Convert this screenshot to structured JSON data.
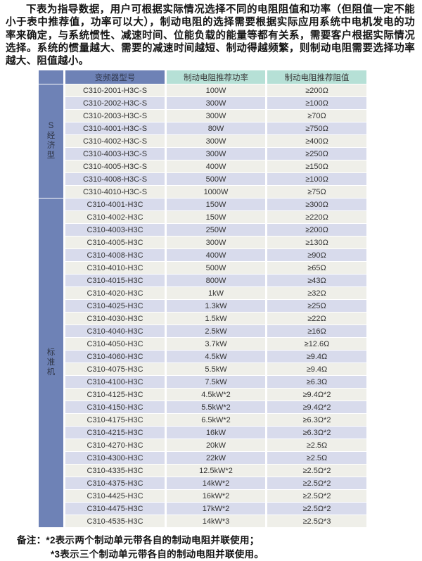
{
  "intro": {
    "text": "下表为指导数据，用户可根据实际情况选择不同的电阻阻值和功率（但阻值一定不能小于表中推荐值，功率可以大），制动电阻的选择需要根据实际应用系统中电机发电的功率来确定，与系统惯性、减速时间、位能负载的能量等都有关系，需要客户根据实际情况选择。系统的惯量越大、需要的减速时间越短、制动得越频繁，则制动电阻需要选择功率越大、阻值越小。"
  },
  "table": {
    "headers": {
      "model": "变频器型号",
      "power": "制动电阻推荐功率",
      "resistance": "制动电阻推荐阻值"
    },
    "groups": [
      {
        "label": "S经济型",
        "rows": [
          {
            "model": "C310-2001-H3C-S",
            "power": "100W",
            "resistance": "≥200Ω"
          },
          {
            "model": "C310-2002-H3C-S",
            "power": "300W",
            "resistance": "≥100Ω"
          },
          {
            "model": "C310-2003-H3C-S",
            "power": "300W",
            "resistance": "≥70Ω"
          },
          {
            "model": "C310-4001-H3C-S",
            "power": "80W",
            "resistance": "≥750Ω"
          },
          {
            "model": "C310-4002-H3C-S",
            "power": "300W",
            "resistance": "≥400Ω"
          },
          {
            "model": "C310-4003-H3C-S",
            "power": "300W",
            "resistance": "≥250Ω"
          },
          {
            "model": "C310-4005-H3C-S",
            "power": "400W",
            "resistance": "≥150Ω"
          },
          {
            "model": "C310-4008-H3C-S",
            "power": "500W",
            "resistance": "≥100Ω"
          },
          {
            "model": "C310-4010-H3C-S",
            "power": "1000W",
            "resistance": "≥75Ω"
          }
        ]
      },
      {
        "label": "标准机",
        "rows": [
          {
            "model": "C310-4001-H3C",
            "power": "150W",
            "resistance": "≥300Ω"
          },
          {
            "model": "C310-4002-H3C",
            "power": "150W",
            "resistance": "≥220Ω"
          },
          {
            "model": "C310-4003-H3C",
            "power": "250W",
            "resistance": "≥200Ω"
          },
          {
            "model": "C310-4005-H3C",
            "power": "300W",
            "resistance": "≥130Ω"
          },
          {
            "model": "C310-4008-H3C",
            "power": "400W",
            "resistance": "≥90Ω"
          },
          {
            "model": "C310-4010-H3C",
            "power": "500W",
            "resistance": "≥65Ω"
          },
          {
            "model": "C310-4015-H3C",
            "power": "800W",
            "resistance": "≥43Ω"
          },
          {
            "model": "C310-4020-H3C",
            "power": "1kW",
            "resistance": "≥32Ω"
          },
          {
            "model": "C310-4025-H3C",
            "power": "1.3kW",
            "resistance": "≥25Ω"
          },
          {
            "model": "C310-4030-H3C",
            "power": "1.5kW",
            "resistance": "≥22Ω"
          },
          {
            "model": "C310-4040-H3C",
            "power": "2.5kW",
            "resistance": "≥16Ω"
          },
          {
            "model": "C310-4050-H3C",
            "power": "3.7kW",
            "resistance": "≥12.6Ω"
          },
          {
            "model": "C310-4060-H3C",
            "power": "4.5kW",
            "resistance": "≥9.4Ω"
          },
          {
            "model": "C310-4075-H3C",
            "power": "5.5kW",
            "resistance": "≥9.4Ω"
          },
          {
            "model": "C310-4100-H3C",
            "power": "7.5kW",
            "resistance": "≥6.3Ω"
          },
          {
            "model": "C310-4125-H3C",
            "power": "4.5kW*2",
            "resistance": "≥9.4Ω*2"
          },
          {
            "model": "C310-4150-H3C",
            "power": "5.5kW*2",
            "resistance": "≥9.4Ω*2"
          },
          {
            "model": "C310-4175-H3C",
            "power": "6.5kW*2",
            "resistance": "≥6.3Ω*2"
          },
          {
            "model": "C310-4215-H3C",
            "power": "16kW",
            "resistance": "≥6.3Ω*2"
          },
          {
            "model": "C310-4270-H3C",
            "power": "20kW",
            "resistance": "≥2.5Ω"
          },
          {
            "model": "C310-4300-H3C",
            "power": "22kW",
            "resistance": "≥2.5Ω"
          },
          {
            "model": "C310-4335-H3C",
            "power": "12.5kW*2",
            "resistance": "≥2.5Ω*2"
          },
          {
            "model": "C310-4375-H3C",
            "power": "14kW*2",
            "resistance": "≥2.5Ω*2"
          },
          {
            "model": "C310-4425-H3C",
            "power": "16kW*2",
            "resistance": "≥2.5Ω*2"
          },
          {
            "model": "C310-4475-H3C",
            "power": "17kW*2",
            "resistance": "≥2.5Ω*2"
          },
          {
            "model": "C310-4535-H3C",
            "power": "14kW*3",
            "resistance": "≥2.5Ω*3"
          }
        ]
      }
    ]
  },
  "notes": {
    "line1": "备注：*2表示两个制动单元带各自的制动电阻并联使用；",
    "line2": "*3表示三个制动单元带各自的制动电阻并联使用。"
  },
  "colors": {
    "header_blue": "#6e82b6",
    "header_teal": "#b6e0d6",
    "row_light": "#efefe9",
    "row_lavender": "#d8dbec"
  }
}
